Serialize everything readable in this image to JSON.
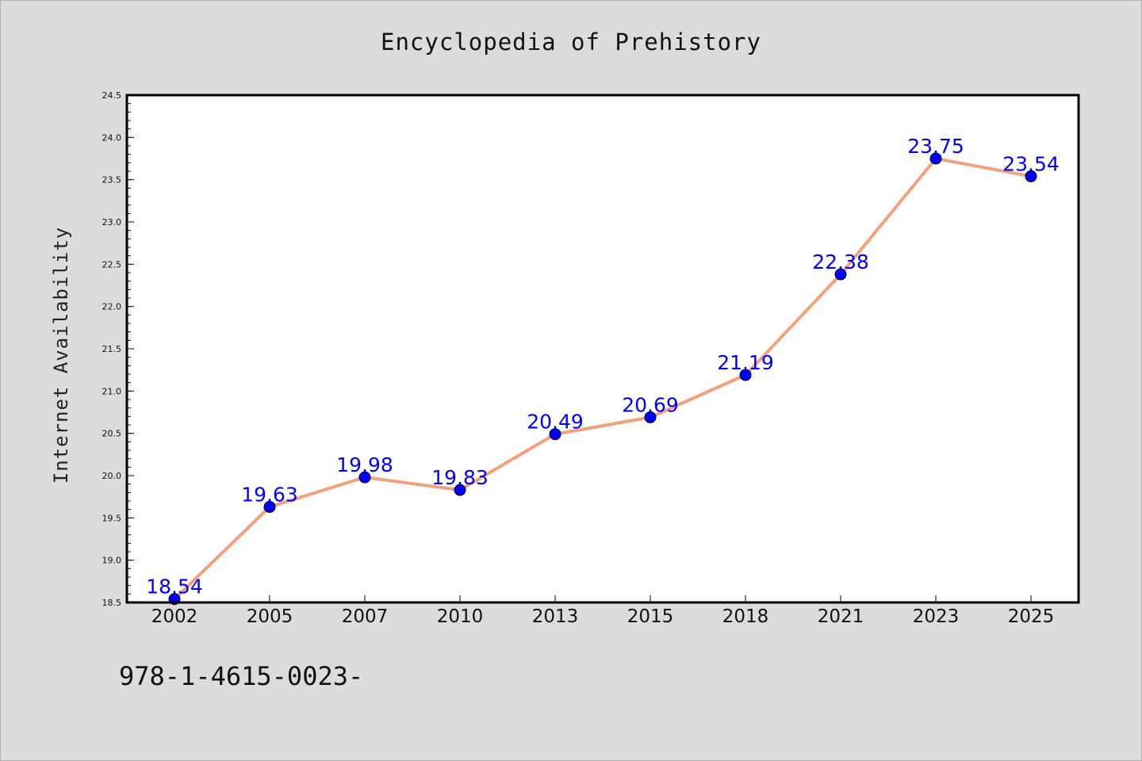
{
  "chart_data": {
    "type": "line",
    "title": "Encyclopedia of Prehistory",
    "xlabel": "",
    "ylabel": "Internet Availability",
    "categories": [
      "2002",
      "2005",
      "2007",
      "2010",
      "2013",
      "2015",
      "2018",
      "2021",
      "2023",
      "2025"
    ],
    "series": [
      {
        "values": [
          18.54,
          19.63,
          19.98,
          19.83,
          20.49,
          20.69,
          21.19,
          22.38,
          23.75,
          23.54
        ],
        "labels": [
          "18.54",
          "19.63",
          "19.98",
          "19.83",
          "20.49",
          "20.69",
          "21.19",
          "22.38",
          "23.75",
          "23.54"
        ],
        "line_color": "#f4a07a",
        "marker_color": "#0000ff",
        "label_color": "#0000ff"
      }
    ],
    "ylim": [
      18.5,
      24.5
    ],
    "yticks": [
      "18.5",
      "19.0",
      "19.5",
      "20.0",
      "20.5",
      "21.0",
      "21.5",
      "22.0",
      "22.5",
      "23.0",
      "23.5",
      "24.0",
      "24.5"
    ],
    "grid": false,
    "legend": "none"
  },
  "footer": {
    "isbn": "978-1-4615-0023-"
  },
  "colors": {
    "background": "#dcdcdc",
    "plot_area": "#ffffff",
    "axes": "#000000"
  }
}
